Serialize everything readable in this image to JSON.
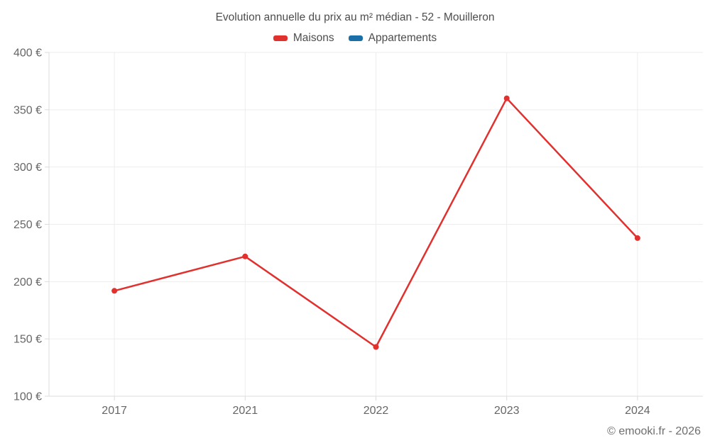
{
  "chart_data": {
    "type": "line",
    "title": "Evolution annuelle du prix au m² médian - 52 - Mouilleron",
    "categories": [
      "2017",
      "2021",
      "2022",
      "2023",
      "2024"
    ],
    "series": [
      {
        "name": "Maisons",
        "color": "#e0312e",
        "values": [
          192,
          222,
          143,
          360,
          238
        ]
      },
      {
        "name": "Appartements",
        "color": "#1a6fa8",
        "values": []
      }
    ],
    "xlabel": "",
    "ylabel": "",
    "ylim": [
      100,
      400
    ],
    "ytick_step": 50,
    "ytick_suffix": " €",
    "grid": true,
    "legend_position": "top"
  },
  "footer": {
    "credit": "© emooki.fr - 2026"
  },
  "colors": {
    "background": "#ffffff",
    "gridline": "#ededed",
    "axis_line": "#dcdcdc",
    "tick_label": "#666666",
    "title_text": "#4d4d4d",
    "footer_text": "#6e6e6e",
    "maisons_accent": "#e0312e",
    "appartements_accent": "#1a6fa8"
  }
}
